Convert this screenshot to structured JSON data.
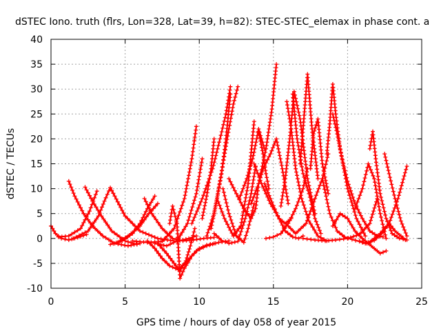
{
  "chart_data": {
    "type": "line",
    "title": "dSTEC Iono. truth (flrs, Lon=328, Lat=39, h=82): STEC-STEC_elemax in phase cont. a",
    "xlabel": "GPS time / hours of day 058 of year 2015",
    "ylabel": "dSTEC  / TECUs",
    "xlim": [
      0,
      25
    ],
    "ylim": [
      -10,
      40
    ],
    "xticks": [
      0,
      5,
      10,
      15,
      20,
      25
    ],
    "yticks": [
      -10,
      -5,
      0,
      5,
      10,
      15,
      20,
      25,
      30,
      35,
      40
    ],
    "grid": true,
    "color": "#ff0000",
    "marker": "+",
    "series": [
      {
        "x": [
          0.0,
          0.3,
          0.7,
          1.2,
          1.8,
          2.4
        ],
        "y": [
          2.5,
          1.0,
          0.0,
          -0.3,
          0.2,
          0.8
        ]
      },
      {
        "x": [
          1.2,
          1.6,
          2.2,
          2.8,
          3.5,
          4.3,
          5.2,
          6.0
        ],
        "y": [
          11.5,
          8.5,
          5.0,
          2.5,
          0.5,
          -1.0,
          -1.5,
          -1.0
        ]
      },
      {
        "x": [
          2.3,
          2.8,
          3.4,
          4.1,
          5.0,
          5.8
        ],
        "y": [
          10.3,
          7.5,
          4.5,
          1.5,
          -0.5,
          -1.2
        ]
      },
      {
        "x": [
          0.5,
          1.2,
          2.0,
          2.6,
          3.1
        ],
        "y": [
          0.3,
          0.5,
          2.0,
          5.5,
          9.5
        ]
      },
      {
        "x": [
          1.5,
          2.5,
          3.2,
          3.6,
          4.0,
          4.3,
          5.0,
          6.0,
          7.2,
          8.5,
          9.3,
          9.8
        ],
        "y": [
          0.0,
          1.5,
          4.5,
          7.5,
          10.2,
          8.5,
          4.5,
          1.5,
          0.0,
          -0.6,
          0.0,
          0.5
        ]
      },
      {
        "x": [
          4.0,
          4.8,
          5.5,
          6.0,
          6.5,
          7.0
        ],
        "y": [
          -1.2,
          -0.5,
          1.0,
          3.0,
          6.0,
          8.5
        ]
      },
      {
        "x": [
          4.5,
          5.2,
          6.0,
          6.6,
          7.2
        ],
        "y": [
          -0.8,
          0.5,
          2.5,
          5.0,
          7.0
        ]
      },
      {
        "x": [
          6.3,
          6.8,
          7.5,
          8.2,
          8.9,
          9.6,
          10.3,
          11.0
        ],
        "y": [
          8.0,
          5.0,
          2.0,
          0.0,
          -0.5,
          -0.3,
          0.0,
          0.2
        ]
      },
      {
        "x": [
          6.5,
          7.0,
          7.5,
          8.0,
          8.6,
          9.2,
          9.8,
          10.5,
          11.3,
          12.0
        ],
        "y": [
          -0.5,
          -2.0,
          -4.0,
          -5.5,
          -6.3,
          -4.5,
          -2.5,
          -1.5,
          -0.8,
          -0.5
        ]
      },
      {
        "x": [
          7.2,
          7.8,
          8.3,
          8.7,
          9.1,
          9.4,
          9.7
        ],
        "y": [
          -1.0,
          -3.0,
          -5.0,
          -6.5,
          -4.5,
          -1.5,
          2.0
        ]
      },
      {
        "x": [
          8.0,
          8.2,
          8.5,
          8.7,
          9.0,
          9.5,
          10.0,
          10.5,
          11.0
        ],
        "y": [
          3.0,
          6.5,
          3.0,
          -8.0,
          -6.0,
          -3.5,
          -2.0,
          -1.3,
          -1.0
        ]
      },
      {
        "x": [
          5.5,
          6.5,
          7.5,
          8.3,
          9.0,
          9.5,
          9.8
        ],
        "y": [
          -0.5,
          -0.8,
          -0.6,
          2.0,
          8.0,
          16.0,
          22.5
        ]
      },
      {
        "x": [
          7.0,
          7.8,
          8.5,
          9.2,
          9.8,
          10.2
        ],
        "y": [
          -1.0,
          -1.5,
          -0.5,
          3.0,
          9.0,
          16.0
        ]
      },
      {
        "x": [
          10.5,
          11.0,
          11.5,
          11.8,
          12.1
        ],
        "y": [
          0.5,
          5.0,
          13.0,
          20.0,
          29.0
        ]
      },
      {
        "x": [
          10.2,
          10.5,
          10.8,
          11.0
        ],
        "y": [
          4.0,
          8.5,
          14.0,
          20.0
        ]
      },
      {
        "x": [
          9.5,
          10.2,
          10.9,
          11.4,
          11.8,
          12.1
        ],
        "y": [
          3.0,
          8.0,
          14.0,
          20.0,
          25.0,
          30.5
        ]
      },
      {
        "x": [
          10.8,
          11.2,
          11.6,
          12.0,
          12.3,
          12.6
        ],
        "y": [
          2.0,
          8.0,
          15.0,
          22.0,
          27.0,
          30.5
        ]
      },
      {
        "x": [
          11.6,
          12.0,
          12.5,
          13.0,
          13.3,
          13.7
        ],
        "y": [
          10.0,
          5.0,
          0.5,
          -0.8,
          2.0,
          7.0
        ]
      },
      {
        "x": [
          11.0,
          11.5,
          12.0,
          12.6,
          13.1,
          13.5,
          13.8
        ],
        "y": [
          1.0,
          -0.4,
          -1.0,
          -0.6,
          4.0,
          9.0,
          14.5
        ]
      },
      {
        "x": [
          11.2,
          11.7,
          12.3,
          12.8,
          13.3,
          13.7
        ],
        "y": [
          8.0,
          4.0,
          0.5,
          2.5,
          11.0,
          23.5
        ]
      },
      {
        "x": [
          12.0,
          12.5,
          13.0,
          13.5,
          13.8,
          14.0,
          14.3,
          14.8,
          15.2,
          15.6,
          16.0
        ],
        "y": [
          12.0,
          9.0,
          6.0,
          4.0,
          6.0,
          11.0,
          14.0,
          17.0,
          20.0,
          14.0,
          7.0
        ]
      },
      {
        "x": [
          14.0,
          14.3,
          14.5,
          14.7
        ],
        "y": [
          21.5,
          17.0,
          13.0,
          10.0
        ]
      },
      {
        "x": [
          13.5,
          14.0,
          14.5,
          14.9,
          15.2
        ],
        "y": [
          7.0,
          11.0,
          18.0,
          26.0,
          35.0
        ]
      },
      {
        "x": [
          14.4,
          14.8,
          15.3,
          15.8,
          16.3,
          16.7,
          17.0
        ],
        "y": [
          11.0,
          8.0,
          4.5,
          1.5,
          0.3,
          0.0,
          0.5
        ]
      },
      {
        "x": [
          15.5,
          15.8,
          16.1,
          16.4,
          16.8,
          17.3,
          17.8
        ],
        "y": [
          6.5,
          12.0,
          20.0,
          29.5,
          24.0,
          12.0,
          5.0
        ]
      },
      {
        "x": [
          15.9,
          16.2,
          16.5,
          16.9,
          17.4,
          18.0,
          18.6
        ],
        "y": [
          27.5,
          22.0,
          14.0,
          8.0,
          3.5,
          0.5,
          -0.5
        ]
      },
      {
        "x": [
          16.3,
          16.6,
          17.0,
          17.4,
          17.8,
          18.2
        ],
        "y": [
          29.0,
          20.0,
          13.0,
          9.0,
          4.0,
          1.0
        ]
      },
      {
        "x": [
          16.8,
          17.0,
          17.3,
          17.6,
          18.0
        ],
        "y": [
          15.0,
          22.0,
          33.0,
          22.0,
          12.0
        ]
      },
      {
        "x": [
          17.5,
          17.7,
          18.0,
          18.3,
          18.7
        ],
        "y": [
          14.0,
          21.0,
          24.0,
          15.0,
          9.0
        ]
      },
      {
        "x": [
          16.0,
          16.5,
          17.2,
          17.8,
          18.3,
          18.7
        ],
        "y": [
          2.5,
          1.0,
          3.0,
          8.0,
          12.0,
          17.0
        ]
      },
      {
        "x": [
          18.6,
          18.8,
          19.0,
          19.2,
          19.5,
          20.0,
          20.6,
          21.2
        ],
        "y": [
          17.0,
          23.0,
          31.0,
          25.0,
          18.0,
          10.0,
          4.0,
          0.5
        ]
      },
      {
        "x": [
          19.0,
          19.3,
          19.6,
          20.0,
          20.5,
          21.0,
          21.5,
          22.0,
          22.4
        ],
        "y": [
          25.0,
          21.0,
          16.5,
          11.5,
          7.0,
          4.0,
          1.5,
          0.5,
          0.3
        ]
      },
      {
        "x": [
          18.3,
          18.8,
          19.3,
          19.8,
          20.3,
          20.8,
          21.2,
          21.6,
          22.2,
          22.8,
          23.4,
          24.0
        ],
        "y": [
          12.0,
          5.0,
          1.5,
          0.3,
          -0.2,
          -0.6,
          -1.0,
          -0.5,
          1.0,
          3.0,
          8.0,
          14.5
        ]
      },
      {
        "x": [
          19.0,
          19.5,
          20.0,
          20.5,
          21.0,
          21.6,
          22.2,
          22.6
        ],
        "y": [
          2.5,
          5.0,
          4.0,
          1.5,
          0.0,
          -1.5,
          -3.0,
          -2.5
        ]
      },
      {
        "x": [
          17.0,
          17.8,
          18.5,
          19.2,
          20.0,
          20.8,
          21.5,
          22.0
        ],
        "y": [
          0.0,
          -0.3,
          -0.5,
          -0.3,
          0.0,
          0.8,
          3.0,
          8.0
        ]
      },
      {
        "x": [
          21.5,
          21.7,
          21.9,
          22.2,
          22.6,
          23.0,
          23.5,
          24.0
        ],
        "y": [
          18.0,
          21.5,
          16.0,
          9.0,
          4.0,
          1.0,
          0.0,
          -0.3
        ]
      },
      {
        "x": [
          22.5,
          22.8,
          23.2,
          23.6,
          24.0
        ],
        "y": [
          17.0,
          13.0,
          8.0,
          3.5,
          0.5
        ]
      },
      {
        "x": [
          20.5,
          21.0,
          21.4,
          21.8,
          22.2,
          22.6
        ],
        "y": [
          6.0,
          10.0,
          15.0,
          12.0,
          5.0,
          0.0
        ]
      },
      {
        "x": [
          14.5,
          15.0,
          15.5,
          16.0,
          16.5,
          17.0,
          17.3
        ],
        "y": [
          0.0,
          0.3,
          1.0,
          3.0,
          6.0,
          10.0,
          14.0
        ]
      },
      {
        "x": [
          20.8,
          21.3,
          21.8,
          22.3,
          22.8,
          23.2,
          23.6,
          23.9
        ],
        "y": [
          -0.5,
          -1.0,
          -0.4,
          1.0,
          3.0,
          1.5,
          0.5,
          -0.3
        ]
      },
      {
        "x": [
          12.7,
          13.2,
          13.6,
          14.0,
          14.4
        ],
        "y": [
          8.0,
          12.0,
          16.0,
          22.0,
          18.0
        ]
      },
      {
        "x": [
          13.7,
          14.2,
          14.8,
          15.4,
          15.8,
          16.2
        ],
        "y": [
          15.0,
          11.0,
          7.0,
          4.0,
          3.0,
          4.0
        ]
      }
    ]
  }
}
